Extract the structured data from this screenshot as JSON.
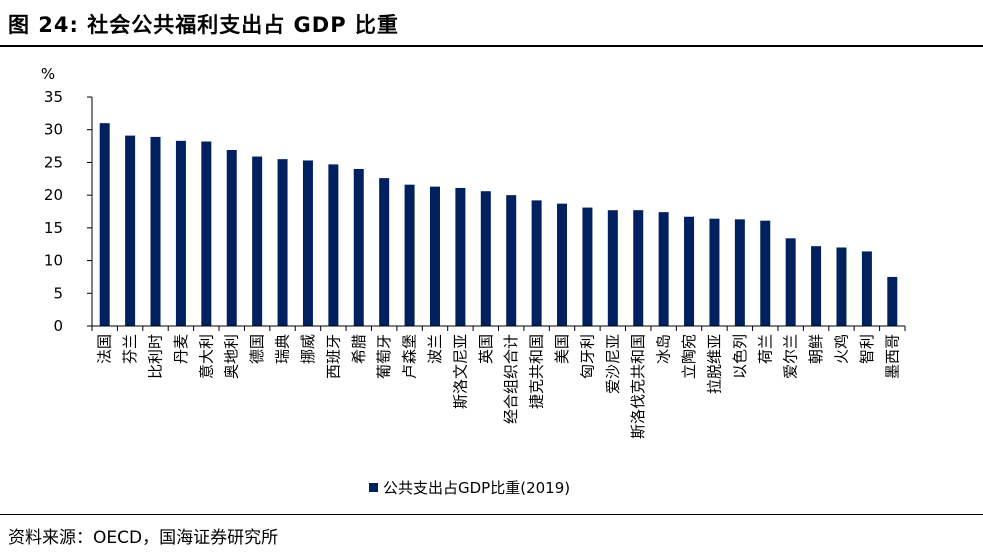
{
  "title": "图 24:  社会公共福利支出占 GDP 比重",
  "source": "资料来源：OECD，国海证券研究所",
  "colors": {
    "bar": "#002060",
    "axis": "#000000"
  },
  "chart_data": {
    "type": "bar",
    "ylabel": "%",
    "ylim": [
      0,
      35
    ],
    "yticks": [
      "0",
      "5",
      "10",
      "15",
      "20",
      "25",
      "30",
      "35"
    ],
    "legend": "公共支出占GDP比重(2019)",
    "legend_position": "bottom-center",
    "categories": [
      "法国",
      "芬兰",
      "比利时",
      "丹麦",
      "意大利",
      "奥地利",
      "德国",
      "瑞典",
      "挪威",
      "西班牙",
      "希腊",
      "葡萄牙",
      "卢森堡",
      "波兰",
      "斯洛文尼亚",
      "英国",
      "经合组织合计",
      "捷克共和国",
      "美国",
      "匈牙利",
      "爱沙尼亚",
      "斯洛伐克共和国",
      "冰岛",
      "立陶宛",
      "拉脱维亚",
      "以色列",
      "荷兰",
      "爱尔兰",
      "朝鲜",
      "火鸡",
      "智利",
      "墨西哥"
    ],
    "values": [
      31.0,
      29.1,
      28.9,
      28.3,
      28.2,
      26.9,
      25.9,
      25.5,
      25.3,
      24.7,
      24.0,
      22.6,
      21.6,
      21.3,
      21.1,
      20.6,
      20.0,
      19.2,
      18.7,
      18.1,
      17.7,
      17.7,
      17.4,
      16.7,
      16.4,
      16.3,
      16.1,
      13.4,
      12.2,
      12.0,
      11.4,
      7.5
    ]
  }
}
